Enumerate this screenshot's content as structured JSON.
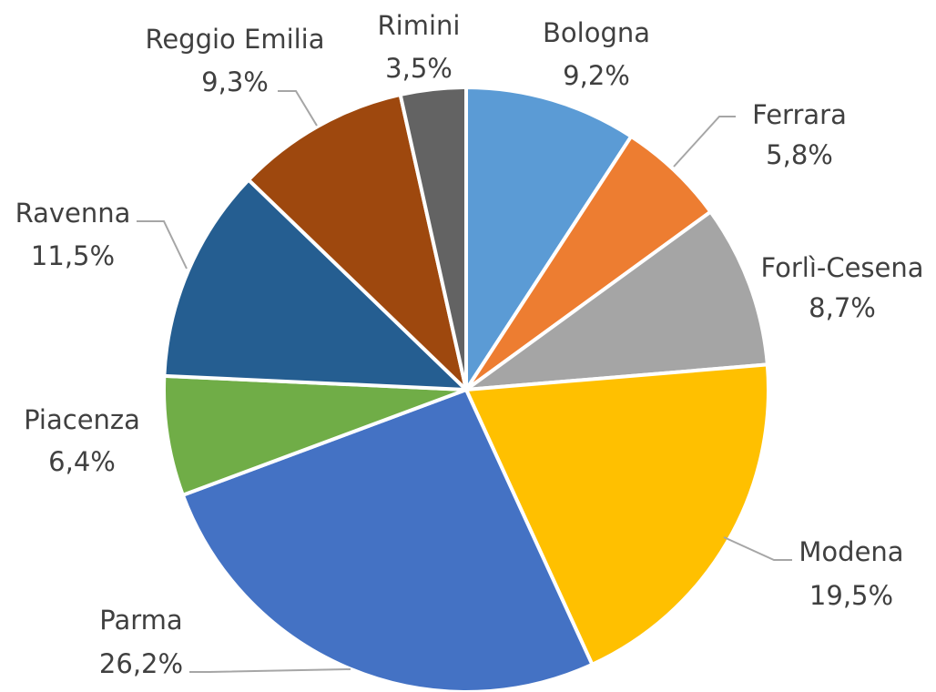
{
  "chart_data": {
    "type": "pie",
    "categories": [
      "Bologna",
      "Ferrara",
      "Forlì-Cesena",
      "Modena",
      "Parma",
      "Piacenza",
      "Ravenna",
      "Reggio Emilia",
      "Rimini"
    ],
    "values": [
      9.2,
      5.8,
      8.7,
      19.5,
      26.2,
      6.4,
      11.5,
      9.3,
      3.5
    ],
    "value_labels": [
      "9,2%",
      "5,8%",
      "8,7%",
      "19,5%",
      "26,2%",
      "6,4%",
      "11,5%",
      "9,3%",
      "3,5%"
    ],
    "colors": [
      "#5b9bd5",
      "#ed7d31",
      "#a5a5a5",
      "#ffc000",
      "#4472c4",
      "#70ad47",
      "#255e91",
      "#9e480e",
      "#636363"
    ]
  }
}
